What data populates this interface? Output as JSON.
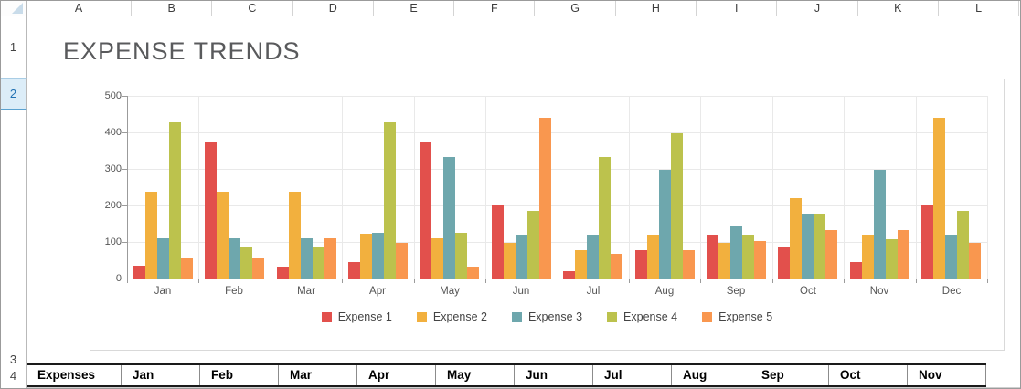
{
  "title": "EXPENSE TRENDS",
  "spreadsheet": {
    "column_headers": [
      "A",
      "B",
      "C",
      "D",
      "E",
      "F",
      "G",
      "H",
      "I",
      "J",
      "K",
      "L"
    ],
    "row_headers": [
      "1",
      "2",
      "3",
      "4"
    ],
    "selected_row": "2"
  },
  "chart_data": {
    "type": "bar",
    "title": "",
    "xlabel": "",
    "ylabel": "",
    "categories": [
      "Jan",
      "Feb",
      "Mar",
      "Apr",
      "May",
      "Jun",
      "Jul",
      "Aug",
      "Sep",
      "Oct",
      "Nov",
      "Dec"
    ],
    "series": [
      {
        "name": "Expense 1",
        "color": "#e2504c",
        "values": [
          35,
          375,
          33,
          45,
          375,
          202,
          20,
          78,
          120,
          87,
          45,
          202
        ]
      },
      {
        "name": "Expense 2",
        "color": "#f2b03e",
        "values": [
          238,
          238,
          238,
          122,
          111,
          97,
          78,
          119,
          97,
          220,
          119,
          440
        ]
      },
      {
        "name": "Expense 3",
        "color": "#6ea7ad",
        "values": [
          110,
          110,
          110,
          126,
          333,
          121,
          119,
          298,
          143,
          177,
          298,
          121
        ]
      },
      {
        "name": "Expense 4",
        "color": "#bcc24d",
        "values": [
          427,
          85,
          85,
          427,
          126,
          185,
          333,
          398,
          119,
          177,
          108,
          185
        ]
      },
      {
        "name": "Expense 5",
        "color": "#f9974f",
        "values": [
          55,
          55,
          110,
          97,
          33,
          440,
          68,
          77,
          102,
          133,
          133,
          97
        ]
      }
    ],
    "ylim": [
      0,
      500
    ],
    "yticks": [
      0,
      100,
      200,
      300,
      400,
      500
    ],
    "grid": true,
    "legend_position": "bottom"
  },
  "data_table": {
    "headers": [
      "Expenses",
      "Jan",
      "Feb",
      "Mar",
      "Apr",
      "May",
      "Jun",
      "Jul",
      "Aug",
      "Sep",
      "Oct",
      "Nov"
    ]
  }
}
